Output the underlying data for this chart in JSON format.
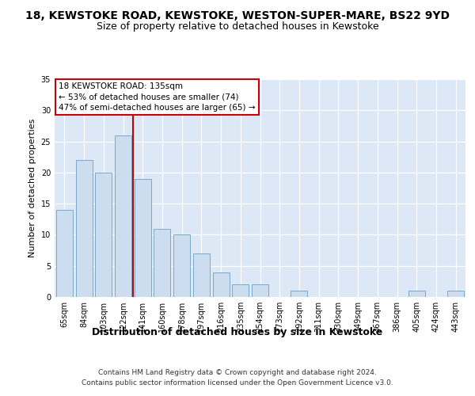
{
  "title": "18, KEWSTOKE ROAD, KEWSTOKE, WESTON-SUPER-MARE, BS22 9YD",
  "subtitle": "Size of property relative to detached houses in Kewstoke",
  "xlabel": "Distribution of detached houses by size in Kewstoke",
  "ylabel": "Number of detached properties",
  "categories": [
    "65sqm",
    "84sqm",
    "103sqm",
    "122sqm",
    "141sqm",
    "160sqm",
    "178sqm",
    "197sqm",
    "216sqm",
    "235sqm",
    "254sqm",
    "273sqm",
    "292sqm",
    "311sqm",
    "330sqm",
    "349sqm",
    "367sqm",
    "386sqm",
    "405sqm",
    "424sqm",
    "443sqm"
  ],
  "values": [
    14,
    22,
    20,
    26,
    19,
    11,
    10,
    7,
    4,
    2,
    2,
    0,
    1,
    0,
    0,
    0,
    0,
    0,
    1,
    0,
    1
  ],
  "bar_color": "#ccddf0",
  "bar_edge_color": "#7aaaca",
  "vline_color": "#cc0000",
  "vline_position": 3.5,
  "annotation_line1": "18 KEWSTOKE ROAD: 135sqm",
  "annotation_line2": "← 53% of detached houses are smaller (74)",
  "annotation_line3": "47% of semi-detached houses are larger (65) →",
  "annotation_box_color": "#cc0000",
  "ylim": [
    0,
    35
  ],
  "yticks": [
    0,
    5,
    10,
    15,
    20,
    25,
    30,
    35
  ],
  "footer_line1": "Contains HM Land Registry data © Crown copyright and database right 2024.",
  "footer_line2": "Contains public sector information licensed under the Open Government Licence v3.0.",
  "plot_bg_color": "#dce8f5",
  "fig_bg_color": "#ffffff",
  "grid_color": "#ffffff",
  "title_fontsize": 10,
  "subtitle_fontsize": 9,
  "xlabel_fontsize": 9,
  "ylabel_fontsize": 8,
  "tick_fontsize": 7,
  "footer_fontsize": 6.5,
  "annot_fontsize": 7.5
}
